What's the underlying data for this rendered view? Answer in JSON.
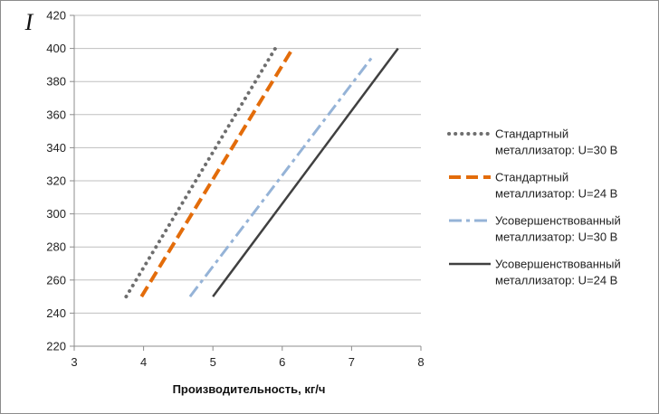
{
  "chart_data": {
    "type": "line",
    "title": "",
    "xlabel": "Производительность, кг/ч",
    "ylabel": "I",
    "xlim": [
      3,
      8
    ],
    "ylim": [
      220,
      420
    ],
    "x_ticks": [
      "3",
      "4",
      "5",
      "6",
      "7",
      "8"
    ],
    "y_ticks": [
      "220",
      "240",
      "260",
      "280",
      "300",
      "320",
      "340",
      "360",
      "380",
      "400",
      "420"
    ],
    "grid": "horizontal",
    "legend_position": "right",
    "series": [
      {
        "name_lines": [
          "Стандартный",
          "металлизатор: U=30 В"
        ],
        "color": "#6e6e6e",
        "style": "dotted",
        "points": [
          [
            3.75,
            250
          ],
          [
            5.9,
            400
          ]
        ]
      },
      {
        "name_lines": [
          "Стандартный",
          "металлизатор: U=24 В"
        ],
        "color": "#e36c0a",
        "style": "dashed",
        "points": [
          [
            3.97,
            250
          ],
          [
            6.15,
            400
          ]
        ]
      },
      {
        "name_lines": [
          "Усовершенствованный",
          "металлизатор: U=30 В"
        ],
        "color": "#95b3d7",
        "style": "dashdot",
        "points": [
          [
            4.67,
            250
          ],
          [
            7.3,
            395
          ]
        ]
      },
      {
        "name_lines": [
          "Усовершенствованный",
          "металлизатор: U=24 В"
        ],
        "color": "#404040",
        "style": "solid",
        "points": [
          [
            5.0,
            250
          ],
          [
            7.67,
            400
          ]
        ]
      }
    ]
  }
}
